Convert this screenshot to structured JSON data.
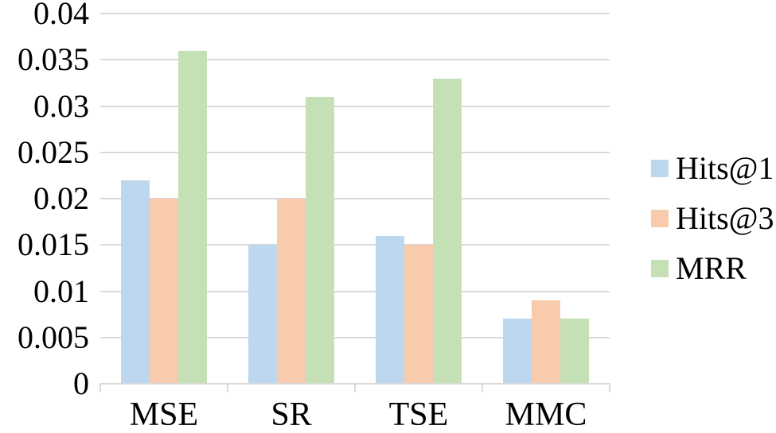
{
  "chart_data": {
    "type": "bar",
    "categories": [
      "MSE",
      "SR",
      "TSE",
      "MMC"
    ],
    "series": [
      {
        "name": "Hits@1",
        "color": "#BDD7EE",
        "values": [
          0.022,
          0.015,
          0.016,
          0.007
        ]
      },
      {
        "name": "Hits@3",
        "color": "#F8CBAD",
        "values": [
          0.02,
          0.02,
          0.015,
          0.009
        ]
      },
      {
        "name": "MRR",
        "color": "#C5E0B4",
        "values": [
          0.036,
          0.031,
          0.033,
          0.007
        ]
      }
    ],
    "title": "",
    "xlabel": "",
    "ylabel": "",
    "ylim": [
      0,
      0.04
    ],
    "ytick_step": 0.005,
    "ytick_labels": [
      "0",
      "0.005",
      "0.01",
      "0.015",
      "0.02",
      "0.025",
      "0.03",
      "0.035",
      "0.04"
    ],
    "grid": true,
    "legend_position": "right",
    "colors": {
      "gridline": "#D9D9D9",
      "axis": "#D9D9D9",
      "text": "#000000",
      "background": "#FFFFFF"
    }
  }
}
